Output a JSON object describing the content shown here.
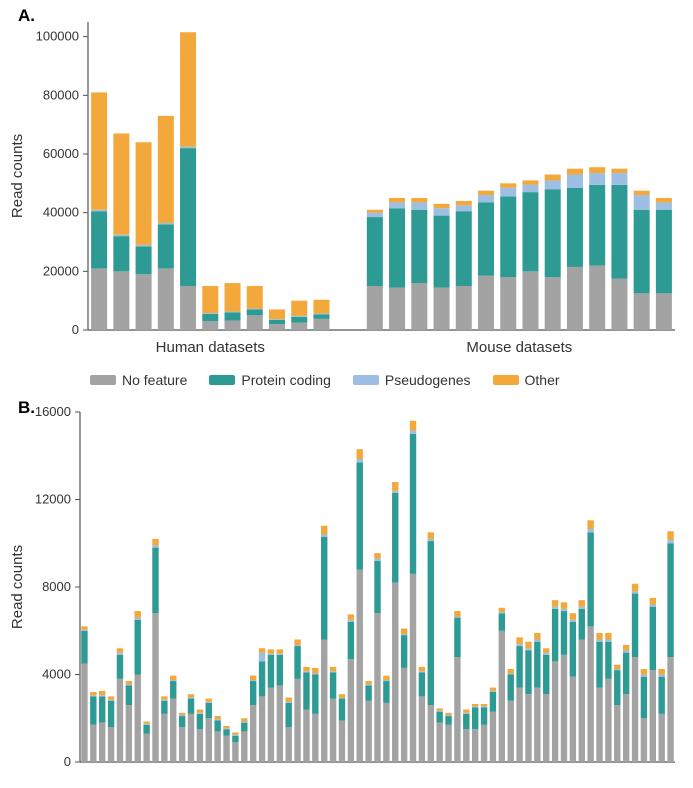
{
  "colors": {
    "no_feature": "#a3a3a3",
    "protein_coding": "#2d9a94",
    "pseudogenes": "#9dbfe4",
    "other": "#f2a83b",
    "axis": "#555555",
    "text": "#333333",
    "background": "#ffffff"
  },
  "legend": {
    "items": [
      {
        "key": "no_feature",
        "label": "No feature"
      },
      {
        "key": "protein_coding",
        "label": "Protein coding"
      },
      {
        "key": "pseudogenes",
        "label": "Pseudogenes"
      },
      {
        "key": "other",
        "label": "Other"
      }
    ]
  },
  "panelA": {
    "label": "A.",
    "ylabel": "Read counts",
    "ylim": [
      0,
      105000
    ],
    "yticks": [
      0,
      20000,
      40000,
      60000,
      80000,
      100000
    ],
    "group_labels": [
      "Human datasets",
      "Mouse datasets"
    ],
    "group_gap": 1.4,
    "bar_width": 0.72,
    "bars": [
      {
        "g": 0,
        "no_feature": 21000,
        "protein_coding": 19500,
        "pseudogenes": 500,
        "other": 40000
      },
      {
        "g": 0,
        "no_feature": 20000,
        "protein_coding": 12000,
        "pseudogenes": 500,
        "other": 34500
      },
      {
        "g": 0,
        "no_feature": 19000,
        "protein_coding": 9500,
        "pseudogenes": 500,
        "other": 35000
      },
      {
        "g": 0,
        "no_feature": 21000,
        "protein_coding": 15000,
        "pseudogenes": 500,
        "other": 36500
      },
      {
        "g": 0,
        "no_feature": 15000,
        "protein_coding": 47000,
        "pseudogenes": 500,
        "other": 39000
      },
      {
        "g": 0,
        "no_feature": 3000,
        "protein_coding": 2500,
        "pseudogenes": 300,
        "other": 9200
      },
      {
        "g": 0,
        "no_feature": 3200,
        "protein_coding": 2800,
        "pseudogenes": 300,
        "other": 9700
      },
      {
        "g": 0,
        "no_feature": 5000,
        "protein_coding": 2000,
        "pseudogenes": 300,
        "other": 7700
      },
      {
        "g": 0,
        "no_feature": 2000,
        "protein_coding": 1500,
        "pseudogenes": 200,
        "other": 3300
      },
      {
        "g": 0,
        "no_feature": 2500,
        "protein_coding": 2000,
        "pseudogenes": 300,
        "other": 5200
      },
      {
        "g": 0,
        "no_feature": 3800,
        "protein_coding": 1500,
        "pseudogenes": 300,
        "other": 4700
      },
      {
        "g": 1,
        "no_feature": 15000,
        "protein_coding": 23500,
        "pseudogenes": 1500,
        "other": 1000
      },
      {
        "g": 1,
        "no_feature": 14500,
        "protein_coding": 27000,
        "pseudogenes": 2000,
        "other": 1500
      },
      {
        "g": 1,
        "no_feature": 16000,
        "protein_coding": 25000,
        "pseudogenes": 2500,
        "other": 1500
      },
      {
        "g": 1,
        "no_feature": 14500,
        "protein_coding": 24500,
        "pseudogenes": 2500,
        "other": 1500
      },
      {
        "g": 1,
        "no_feature": 15000,
        "protein_coding": 25500,
        "pseudogenes": 2000,
        "other": 1500
      },
      {
        "g": 1,
        "no_feature": 18500,
        "protein_coding": 25000,
        "pseudogenes": 2500,
        "other": 1500
      },
      {
        "g": 1,
        "no_feature": 18000,
        "protein_coding": 27500,
        "pseudogenes": 3000,
        "other": 1500
      },
      {
        "g": 1,
        "no_feature": 20000,
        "protein_coding": 27000,
        "pseudogenes": 2500,
        "other": 1500
      },
      {
        "g": 1,
        "no_feature": 18000,
        "protein_coding": 30000,
        "pseudogenes": 3000,
        "other": 2000
      },
      {
        "g": 1,
        "no_feature": 21500,
        "protein_coding": 27000,
        "pseudogenes": 4500,
        "other": 2000
      },
      {
        "g": 1,
        "no_feature": 22000,
        "protein_coding": 27500,
        "pseudogenes": 4000,
        "other": 2000
      },
      {
        "g": 1,
        "no_feature": 17500,
        "protein_coding": 32000,
        "pseudogenes": 4000,
        "other": 1500
      },
      {
        "g": 1,
        "no_feature": 12500,
        "protein_coding": 28500,
        "pseudogenes": 5000,
        "other": 1500
      },
      {
        "g": 1,
        "no_feature": 12500,
        "protein_coding": 28500,
        "pseudogenes": 2500,
        "other": 1500
      }
    ]
  },
  "panelB": {
    "label": "B.",
    "ylabel": "Read counts",
    "ylim": [
      0,
      16000
    ],
    "yticks": [
      0,
      4000,
      8000,
      12000,
      16000
    ],
    "bar_width": 0.72,
    "bars": [
      {
        "no_feature": 4500,
        "protein_coding": 1500,
        "pseudogenes": 50,
        "other": 150
      },
      {
        "no_feature": 1700,
        "protein_coding": 1300,
        "pseudogenes": 50,
        "other": 150
      },
      {
        "no_feature": 1800,
        "protein_coding": 1200,
        "pseudogenes": 50,
        "other": 200
      },
      {
        "no_feature": 1600,
        "protein_coding": 1200,
        "pseudogenes": 50,
        "other": 150
      },
      {
        "no_feature": 3800,
        "protein_coding": 1100,
        "pseudogenes": 100,
        "other": 200
      },
      {
        "no_feature": 2600,
        "protein_coding": 900,
        "pseudogenes": 50,
        "other": 150
      },
      {
        "no_feature": 4000,
        "protein_coding": 2500,
        "pseudogenes": 100,
        "other": 300
      },
      {
        "no_feature": 1300,
        "protein_coding": 400,
        "pseudogenes": 50,
        "other": 100
      },
      {
        "no_feature": 6800,
        "protein_coding": 3000,
        "pseudogenes": 100,
        "other": 300
      },
      {
        "no_feature": 2200,
        "protein_coding": 600,
        "pseudogenes": 50,
        "other": 150
      },
      {
        "no_feature": 2900,
        "protein_coding": 800,
        "pseudogenes": 50,
        "other": 200
      },
      {
        "no_feature": 1600,
        "protein_coding": 500,
        "pseudogenes": 50,
        "other": 100
      },
      {
        "no_feature": 2200,
        "protein_coding": 700,
        "pseudogenes": 50,
        "other": 150
      },
      {
        "no_feature": 1500,
        "protein_coding": 700,
        "pseudogenes": 50,
        "other": 150
      },
      {
        "no_feature": 2000,
        "protein_coding": 700,
        "pseudogenes": 50,
        "other": 150
      },
      {
        "no_feature": 1400,
        "protein_coding": 500,
        "pseudogenes": 50,
        "other": 150
      },
      {
        "no_feature": 1200,
        "protein_coding": 300,
        "pseudogenes": 50,
        "other": 100
      },
      {
        "no_feature": 900,
        "protein_coding": 300,
        "pseudogenes": 50,
        "other": 100
      },
      {
        "no_feature": 1400,
        "protein_coding": 400,
        "pseudogenes": 50,
        "other": 150
      },
      {
        "no_feature": 2600,
        "protein_coding": 1100,
        "pseudogenes": 50,
        "other": 200
      },
      {
        "no_feature": 3000,
        "protein_coding": 1600,
        "pseudogenes": 400,
        "other": 200
      },
      {
        "no_feature": 3400,
        "protein_coding": 1500,
        "pseudogenes": 50,
        "other": 200
      },
      {
        "no_feature": 3500,
        "protein_coding": 1400,
        "pseudogenes": 50,
        "other": 200
      },
      {
        "no_feature": 1600,
        "protein_coding": 1100,
        "pseudogenes": 50,
        "other": 200
      },
      {
        "no_feature": 3800,
        "protein_coding": 1500,
        "pseudogenes": 50,
        "other": 250
      },
      {
        "no_feature": 2400,
        "protein_coding": 1700,
        "pseudogenes": 50,
        "other": 200
      },
      {
        "no_feature": 2200,
        "protein_coding": 1800,
        "pseudogenes": 50,
        "other": 250
      },
      {
        "no_feature": 5600,
        "protein_coding": 4700,
        "pseudogenes": 100,
        "other": 400
      },
      {
        "no_feature": 2900,
        "protein_coding": 1200,
        "pseudogenes": 50,
        "other": 200
      },
      {
        "no_feature": 1900,
        "protein_coding": 1000,
        "pseudogenes": 50,
        "other": 150
      },
      {
        "no_feature": 4700,
        "protein_coding": 1700,
        "pseudogenes": 100,
        "other": 250
      },
      {
        "no_feature": 8800,
        "protein_coding": 4900,
        "pseudogenes": 150,
        "other": 450
      },
      {
        "no_feature": 2800,
        "protein_coding": 700,
        "pseudogenes": 50,
        "other": 150
      },
      {
        "no_feature": 6800,
        "protein_coding": 2400,
        "pseudogenes": 100,
        "other": 250
      },
      {
        "no_feature": 2700,
        "protein_coding": 1000,
        "pseudogenes": 50,
        "other": 200
      },
      {
        "no_feature": 8200,
        "protein_coding": 4100,
        "pseudogenes": 100,
        "other": 400
      },
      {
        "no_feature": 4300,
        "protein_coding": 1500,
        "pseudogenes": 50,
        "other": 250
      },
      {
        "no_feature": 8600,
        "protein_coding": 6400,
        "pseudogenes": 150,
        "other": 450
      },
      {
        "no_feature": 3000,
        "protein_coding": 1100,
        "pseudogenes": 50,
        "other": 200
      },
      {
        "no_feature": 2600,
        "protein_coding": 7500,
        "pseudogenes": 100,
        "other": 300
      },
      {
        "no_feature": 1800,
        "protein_coding": 500,
        "pseudogenes": 50,
        "other": 100
      },
      {
        "no_feature": 1700,
        "protein_coding": 400,
        "pseudogenes": 50,
        "other": 100
      },
      {
        "no_feature": 4800,
        "protein_coding": 1800,
        "pseudogenes": 50,
        "other": 250
      },
      {
        "no_feature": 1500,
        "protein_coding": 700,
        "pseudogenes": 50,
        "other": 150
      },
      {
        "no_feature": 1500,
        "protein_coding": 1000,
        "pseudogenes": 50,
        "other": 100
      },
      {
        "no_feature": 1700,
        "protein_coding": 800,
        "pseudogenes": 50,
        "other": 100
      },
      {
        "no_feature": 2300,
        "protein_coding": 900,
        "pseudogenes": 50,
        "other": 150
      },
      {
        "no_feature": 6000,
        "protein_coding": 800,
        "pseudogenes": 50,
        "other": 200
      },
      {
        "no_feature": 2800,
        "protein_coding": 1200,
        "pseudogenes": 50,
        "other": 200
      },
      {
        "no_feature": 3400,
        "protein_coding": 1900,
        "pseudogenes": 100,
        "other": 300
      },
      {
        "no_feature": 3100,
        "protein_coding": 2000,
        "pseudogenes": 100,
        "other": 300
      },
      {
        "no_feature": 3400,
        "protein_coding": 2100,
        "pseudogenes": 100,
        "other": 300
      },
      {
        "no_feature": 3100,
        "protein_coding": 1800,
        "pseudogenes": 100,
        "other": 200
      },
      {
        "no_feature": 4600,
        "protein_coding": 2400,
        "pseudogenes": 100,
        "other": 300
      },
      {
        "no_feature": 4900,
        "protein_coding": 2000,
        "pseudogenes": 100,
        "other": 300
      },
      {
        "no_feature": 3900,
        "protein_coding": 2500,
        "pseudogenes": 100,
        "other": 300
      },
      {
        "no_feature": 5600,
        "protein_coding": 1400,
        "pseudogenes": 100,
        "other": 300
      },
      {
        "no_feature": 6200,
        "protein_coding": 4300,
        "pseudogenes": 150,
        "other": 400
      },
      {
        "no_feature": 3400,
        "protein_coding": 2100,
        "pseudogenes": 100,
        "other": 300
      },
      {
        "no_feature": 3800,
        "protein_coding": 1700,
        "pseudogenes": 100,
        "other": 300
      },
      {
        "no_feature": 2600,
        "protein_coding": 1600,
        "pseudogenes": 50,
        "other": 200
      },
      {
        "no_feature": 3100,
        "protein_coding": 1900,
        "pseudogenes": 100,
        "other": 250
      },
      {
        "no_feature": 4800,
        "protein_coding": 2900,
        "pseudogenes": 100,
        "other": 350
      },
      {
        "no_feature": 2000,
        "protein_coding": 1900,
        "pseudogenes": 100,
        "other": 250
      },
      {
        "no_feature": 4200,
        "protein_coding": 2900,
        "pseudogenes": 100,
        "other": 300
      },
      {
        "no_feature": 2200,
        "protein_coding": 1700,
        "pseudogenes": 100,
        "other": 250
      },
      {
        "no_feature": 4800,
        "protein_coding": 5200,
        "pseudogenes": 150,
        "other": 400
      }
    ]
  }
}
